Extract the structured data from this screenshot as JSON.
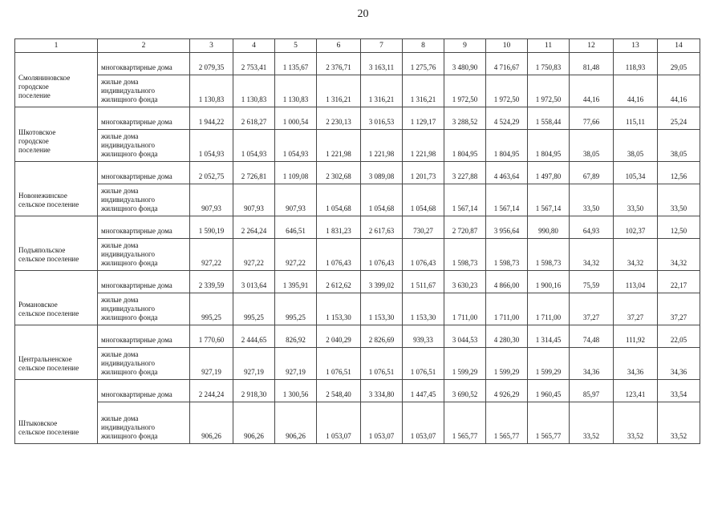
{
  "page": {
    "number": "20"
  },
  "colors": {
    "page_background": "#ffffff",
    "ink": "#1a1a1a"
  },
  "table": {
    "column_headers": [
      "1",
      "2",
      "3",
      "4",
      "5",
      "6",
      "7",
      "8",
      "9",
      "10",
      "11",
      "12",
      "13",
      "14"
    ],
    "row_labels": {
      "apartment": "многоквартирные дома",
      "individual": "жилые дома индивидуального жилищного фонда"
    },
    "groups": [
      {
        "name": "Смоляниновское городское поселение",
        "apartment_values": [
          "2 079,35",
          "2 753,41",
          "1 135,67",
          "2 376,71",
          "3 163,11",
          "1 275,76",
          "3 480,90",
          "4 716,67",
          "1 750,83",
          "81,48",
          "118,93",
          "29,05"
        ],
        "individual_values": [
          "1 130,83",
          "1 130,83",
          "1 130,83",
          "1 316,21",
          "1 316,21",
          "1 316,21",
          "1 972,50",
          "1 972,50",
          "1 972,50",
          "44,16",
          "44,16",
          "44,16"
        ]
      },
      {
        "name": "Шкотовское городское поселение",
        "apartment_values": [
          "1 944,22",
          "2 618,27",
          "1 000,54",
          "2 230,13",
          "3 016,53",
          "1 129,17",
          "3 288,52",
          "4 524,29",
          "1 558,44",
          "77,66",
          "115,11",
          "25,24"
        ],
        "individual_values": [
          "1 054,93",
          "1 054,93",
          "1 054,93",
          "1 221,98",
          "1 221,98",
          "1 221,98",
          "1 804,95",
          "1 804,95",
          "1 804,95",
          "38,05",
          "38,05",
          "38,05"
        ]
      },
      {
        "name": "Новонежинское сельское поселение",
        "apartment_values": [
          "2 052,75",
          "2 726,81",
          "1 109,08",
          "2 302,68",
          "3 089,08",
          "1 201,73",
          "3 227,88",
          "4 463,64",
          "1 497,80",
          "67,89",
          "105,34",
          "12,56"
        ],
        "individual_values": [
          "907,93",
          "907,93",
          "907,93",
          "1 054,68",
          "1 054,68",
          "1 054,68",
          "1 567,14",
          "1 567,14",
          "1 567,14",
          "33,50",
          "33,50",
          "33,50"
        ]
      },
      {
        "name": "Подъяпольское сельское поселение",
        "apartment_values": [
          "1 590,19",
          "2 264,24",
          "646,51",
          "1 831,23",
          "2 617,63",
          "730,27",
          "2 720,87",
          "3 956,64",
          "990,80",
          "64,93",
          "102,37",
          "12,50"
        ],
        "individual_values": [
          "927,22",
          "927,22",
          "927,22",
          "1 076,43",
          "1 076,43",
          "1 076,43",
          "1 598,73",
          "1 598,73",
          "1 598,73",
          "34,32",
          "34,32",
          "34,32"
        ]
      },
      {
        "name": "Романовское сельское поселение",
        "apartment_values": [
          "2 339,59",
          "3 013,64",
          "1 395,91",
          "2 612,62",
          "3 399,02",
          "1 511,67",
          "3 630,23",
          "4 866,00",
          "1 900,16",
          "75,59",
          "113,04",
          "22,17"
        ],
        "individual_values": [
          "995,25",
          "995,25",
          "995,25",
          "1 153,30",
          "1 153,30",
          "1 153,30",
          "1 711,00",
          "1 711,00",
          "1 711,00",
          "37,27",
          "37,27",
          "37,27"
        ]
      },
      {
        "name": "Центральненское сельское поселение",
        "apartment_values": [
          "1 770,60",
          "2 444,65",
          "826,92",
          "2 040,29",
          "2 826,69",
          "939,33",
          "3 044,53",
          "4 280,30",
          "1 314,45",
          "74,48",
          "111,92",
          "22,05"
        ],
        "individual_values": [
          "927,19",
          "927,19",
          "927,19",
          "1 076,51",
          "1 076,51",
          "1 076,51",
          "1 599,29",
          "1 599,29",
          "1 599,29",
          "34,36",
          "34,36",
          "34,36"
        ]
      },
      {
        "name": "Штыковское сельское поселение",
        "apartment_values": [
          "2 244,24",
          "2 918,30",
          "1 300,56",
          "2 548,40",
          "3 334,80",
          "1 447,45",
          "3 690,52",
          "4 926,29",
          "1 960,45",
          "85,97",
          "123,41",
          "33,54"
        ],
        "individual_values": [
          "906,26",
          "906,26",
          "906,26",
          "1 053,07",
          "1 053,07",
          "1 053,07",
          "1 565,77",
          "1 565,77",
          "1 565,77",
          "33,52",
          "33,52",
          "33,52"
        ]
      }
    ]
  }
}
